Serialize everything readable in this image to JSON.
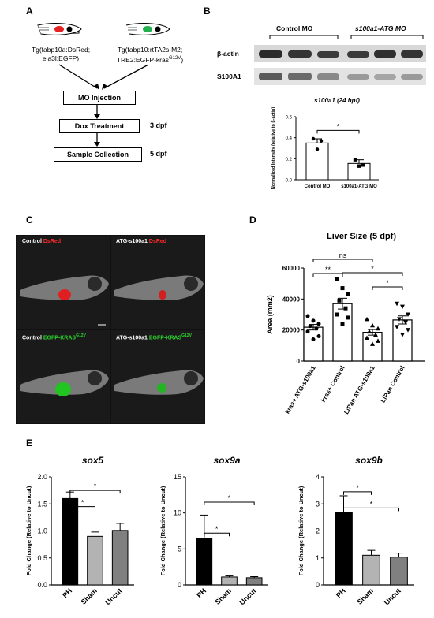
{
  "panels": {
    "A": "A",
    "B": "B",
    "C": "C",
    "D": "D",
    "E": "E"
  },
  "panelA": {
    "left_line1": "Tg(fabp10a:DsRed;",
    "left_line2": "ela3l:EGFP)",
    "right_line1": "Tg(fabp10:rtTA2s-M2;",
    "right_line2": "TRE2:EGFP-kras",
    "right_line2_sup": "G12V",
    "right_line2_end": ")",
    "steps": [
      "MO Injection",
      "Dox Treatment",
      "Sample Collection"
    ],
    "step_days": [
      "",
      "3 dpf",
      "5 dpf"
    ],
    "colors": {
      "red_fish": "#e52222",
      "green_fish": "#22b14c"
    }
  },
  "panelB": {
    "group_left": "Control MO",
    "group_right": "s100a1-ATG MO",
    "row1": "β-actin",
    "row2": "S100A1",
    "chart_data": {
      "type": "bar",
      "title": "s100a1 (24 hpf)",
      "ylabel": "Normalized Intensity (relative to β-actin)",
      "categories": [
        "Control MO",
        "s100a1-ATG MO"
      ],
      "values": [
        0.35,
        0.155
      ],
      "errors": [
        0.04,
        0.035
      ],
      "points": [
        [
          0.39,
          0.37,
          0.29
        ],
        [
          0.19,
          0.14,
          0.13
        ]
      ],
      "ylim": [
        0,
        0.6
      ],
      "yticks": [
        "0.0",
        "0.2",
        "0.4",
        "0.6"
      ],
      "significance": [
        "*"
      ]
    }
  },
  "panelC": {
    "labels": [
      {
        "prefix": "Control ",
        "suffix": "DsRed"
      },
      {
        "prefix": "ATG-s100a1 ",
        "suffix": "DsRed"
      },
      {
        "prefix": "Control ",
        "suffix": "EGFP-KRAS",
        "sup": "G12V"
      },
      {
        "prefix": "ATG-s100a1 ",
        "suffix": "EGFP-KRAS",
        "sup": "G12V"
      }
    ]
  },
  "panelD": {
    "chart_data": {
      "type": "bar",
      "title": "Liver Size (5 dpf)",
      "ylabel": "Area (mm2)",
      "categories": [
        "kras+ ATG-s100a1",
        "kras+ Control",
        "LiPan ATG-s100a1",
        "LiPan Control"
      ],
      "values": [
        21800,
        37000,
        18500,
        26500
      ],
      "errors": [
        1800,
        3500,
        1800,
        2600
      ],
      "points": [
        [
          29000,
          26000,
          24000,
          22500,
          21000,
          19000,
          16000,
          14000
        ],
        [
          53000,
          47000,
          43000,
          39000,
          34000,
          30000,
          28000,
          24000
        ],
        [
          27000,
          23000,
          21000,
          19000,
          17000,
          15000,
          13000,
          11000
        ],
        [
          37000,
          35000,
          30000,
          27000,
          25000,
          22000,
          20000,
          17000
        ]
      ],
      "markers": [
        "circle",
        "square",
        "triangle-up",
        "triangle-down"
      ],
      "ylim": [
        0,
        60000
      ],
      "yticks": [
        "0",
        "20000",
        "40000",
        "60000"
      ],
      "significance": [
        "ns",
        "**",
        "*",
        "*"
      ]
    }
  },
  "panelE": {
    "chart_data": [
      {
        "type": "bar",
        "title": "sox5",
        "ylabel": "Fold Change (Relative to Uncut)",
        "categories": [
          "PH",
          "Sham",
          "Uncut"
        ],
        "values": [
          1.6,
          0.9,
          1.01
        ],
        "errors": [
          0.12,
          0.08,
          0.13
        ],
        "ylim": [
          0,
          2.0
        ],
        "yticks": [
          "0.0",
          "0.5",
          "1.0",
          "1.5",
          "2.0"
        ],
        "significance": [
          "*",
          "*"
        ]
      },
      {
        "type": "bar",
        "title": "sox9a",
        "ylabel": "Fold Change (Relative to Uncut)",
        "categories": [
          "PH",
          "Sham",
          "Uncut"
        ],
        "values": [
          6.5,
          1.1,
          1.0
        ],
        "errors": [
          3.2,
          0.15,
          0.15
        ],
        "ylim": [
          0,
          15
        ],
        "yticks": [
          "0",
          "5",
          "10",
          "15"
        ],
        "significance": [
          "*",
          "*"
        ]
      },
      {
        "type": "bar",
        "title": "sox9b",
        "ylabel": "Fold Change (Relative to Uncut)",
        "categories": [
          "PH",
          "Sham",
          "Uncut"
        ],
        "values": [
          2.7,
          1.1,
          1.03
        ],
        "errors": [
          0.6,
          0.18,
          0.15
        ],
        "ylim": [
          0,
          4
        ],
        "yticks": [
          "0",
          "1",
          "2",
          "3",
          "4"
        ],
        "significance": [
          "*",
          "*"
        ]
      }
    ]
  },
  "colors": {
    "bar_black": "#000000",
    "bar_lightgray": "#b3b3b3",
    "bar_gray": "#808080",
    "bar_D": "#ffffff",
    "microscopy_bg": "#1a1a1a"
  }
}
